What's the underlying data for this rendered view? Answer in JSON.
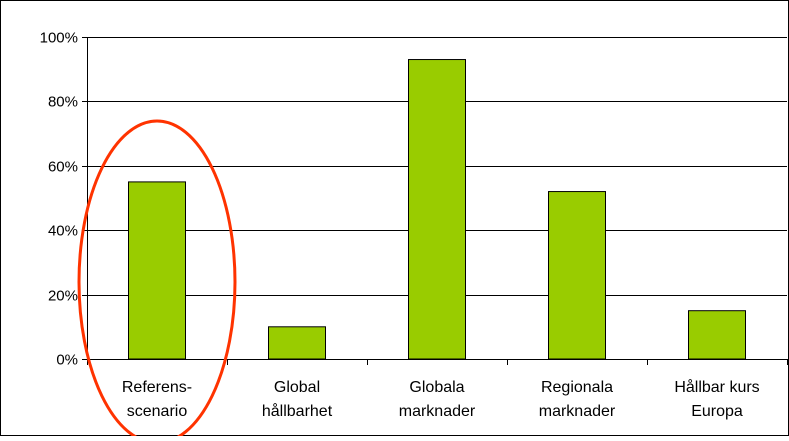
{
  "chart_data": {
    "type": "bar",
    "title": "",
    "xlabel": "",
    "ylabel": "",
    "ylim": [
      0,
      100
    ],
    "yticks": [
      {
        "value": 0,
        "label": "0%"
      },
      {
        "value": 20,
        "label": "20%"
      },
      {
        "value": 40,
        "label": "40%"
      },
      {
        "value": 60,
        "label": "60%"
      },
      {
        "value": 80,
        "label": "80%"
      },
      {
        "value": 100,
        "label": "100%"
      }
    ],
    "categories": [
      {
        "line1": "Referens-",
        "line2": "scenario"
      },
      {
        "line1": "Global",
        "line2": "hållbarhet"
      },
      {
        "line1": "Globala",
        "line2": "marknader"
      },
      {
        "line1": "Regionala",
        "line2": "marknader"
      },
      {
        "line1": "Hållbar kurs",
        "line2": "Europa"
      }
    ],
    "values": [
      55,
      10,
      93,
      52,
      15
    ],
    "grid": true,
    "bar_color": "#99cc00",
    "highlight": {
      "category_index": 0,
      "shape": "ellipse",
      "color": "#ff3300"
    }
  }
}
